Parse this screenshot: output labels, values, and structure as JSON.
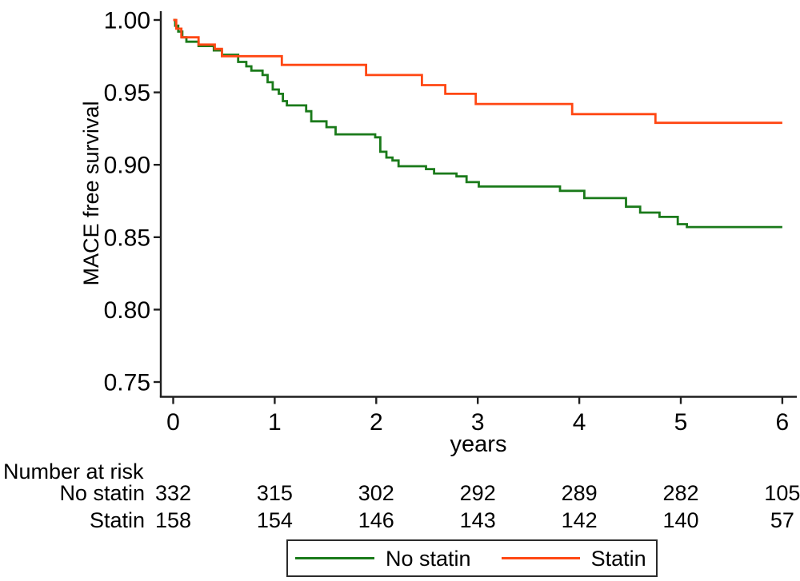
{
  "figure": {
    "background": "#ffffff"
  },
  "chart_data": {
    "type": "line",
    "subtype": "kaplan_meier_step",
    "title": "",
    "ylabel": "MACE free survival",
    "xlabel": "years",
    "xlim": [
      0,
      6
    ],
    "ylim": [
      0.75,
      1.0
    ],
    "x_ticks": [
      0,
      1,
      2,
      3,
      4,
      5,
      6
    ],
    "x_tick_labels": [
      "0",
      "1",
      "2",
      "3",
      "4",
      "5",
      "6"
    ],
    "y_ticks": [
      0.75,
      0.8,
      0.85,
      0.9,
      0.95,
      1.0
    ],
    "y_tick_labels": [
      "0.75",
      "0.80",
      "0.85",
      "0.90",
      "0.95",
      "1.00"
    ],
    "grid": false,
    "axis_color": "#1f1f1f",
    "text_color": "#000000",
    "legend_position": "bottom-center",
    "series": [
      {
        "name": "No statin",
        "color": "#1a7a1a",
        "step_points": [
          [
            0,
            1.0
          ],
          [
            0.02,
            0.996
          ],
          [
            0.05,
            0.992
          ],
          [
            0.09,
            0.988
          ],
          [
            0.13,
            0.985
          ],
          [
            0.25,
            0.982
          ],
          [
            0.4,
            0.979
          ],
          [
            0.48,
            0.976
          ],
          [
            0.64,
            0.971
          ],
          [
            0.72,
            0.968
          ],
          [
            0.77,
            0.965
          ],
          [
            0.88,
            0.962
          ],
          [
            0.93,
            0.957
          ],
          [
            0.98,
            0.952
          ],
          [
            1.04,
            0.949
          ],
          [
            1.08,
            0.944
          ],
          [
            1.12,
            0.941
          ],
          [
            1.31,
            0.937
          ],
          [
            1.36,
            0.93
          ],
          [
            1.51,
            0.926
          ],
          [
            1.6,
            0.921
          ],
          [
            1.99,
            0.919
          ],
          [
            2.04,
            0.909
          ],
          [
            2.1,
            0.905
          ],
          [
            2.16,
            0.903
          ],
          [
            2.22,
            0.899
          ],
          [
            2.49,
            0.897
          ],
          [
            2.57,
            0.894
          ],
          [
            2.79,
            0.892
          ],
          [
            2.89,
            0.888
          ],
          [
            3.01,
            0.885
          ],
          [
            3.81,
            0.882
          ],
          [
            4.05,
            0.877
          ],
          [
            4.46,
            0.871
          ],
          [
            4.6,
            0.867
          ],
          [
            4.79,
            0.864
          ],
          [
            4.97,
            0.859
          ],
          [
            5.06,
            0.857
          ],
          [
            6,
            0.857
          ]
        ]
      },
      {
        "name": "Statin",
        "color": "#ff4713",
        "step_points": [
          [
            0,
            1.0
          ],
          [
            0.03,
            0.994
          ],
          [
            0.08,
            0.988
          ],
          [
            0.25,
            0.983
          ],
          [
            0.41,
            0.98
          ],
          [
            0.48,
            0.975
          ],
          [
            1.07,
            0.969
          ],
          [
            1.9,
            0.962
          ],
          [
            2.45,
            0.955
          ],
          [
            2.68,
            0.949
          ],
          [
            2.98,
            0.942
          ],
          [
            3.93,
            0.935
          ],
          [
            4.75,
            0.929
          ],
          [
            6,
            0.929
          ]
        ]
      }
    ],
    "number_at_risk": {
      "header": "Number at risk",
      "times": [
        0,
        1,
        2,
        3,
        4,
        5,
        6
      ],
      "rows": [
        {
          "label": "No statin",
          "counts": [
            332,
            315,
            302,
            292,
            289,
            282,
            105
          ]
        },
        {
          "label": "Statin",
          "counts": [
            158,
            154,
            146,
            143,
            142,
            140,
            57
          ]
        }
      ]
    }
  }
}
